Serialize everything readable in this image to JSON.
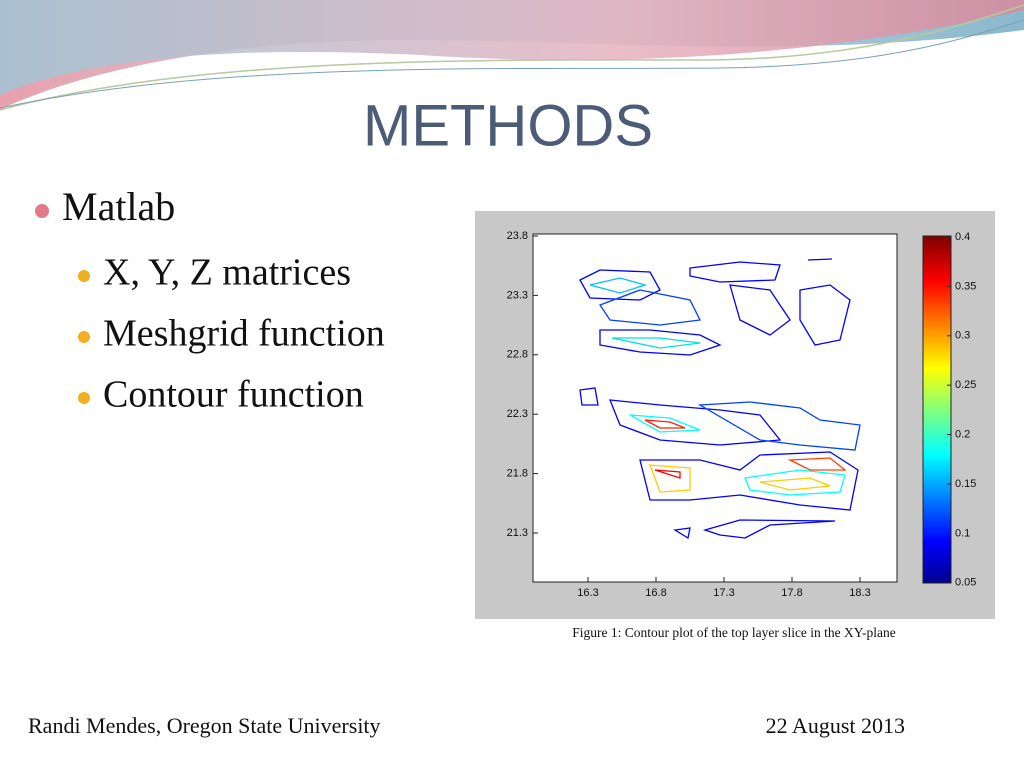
{
  "title": "METHODS",
  "bullets": [
    {
      "text": "Matlab",
      "children": [
        "X, Y, Z matrices",
        "Meshgrid function",
        "Contour function"
      ]
    }
  ],
  "figure": {
    "xticks": [
      16.3,
      16.8,
      17.3,
      17.8,
      18.3
    ],
    "yticks": [
      23.8,
      23.3,
      22.8,
      22.3,
      21.8,
      21.3
    ],
    "colorbar_ticks": [
      0.4,
      0.35,
      0.3,
      0.25,
      0.2,
      0.15,
      0.1,
      0.05
    ],
    "caption": "Figure 1: Contour plot of the top layer slice in the XY-plane"
  },
  "footer": {
    "author": "Randi Mendes, Oregon State University",
    "date": "22 August 2013"
  }
}
